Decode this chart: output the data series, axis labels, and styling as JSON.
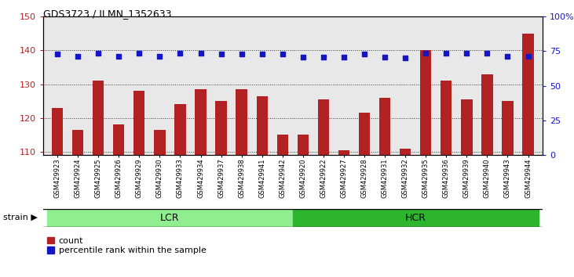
{
  "title": "GDS3723 / ILMN_1352633",
  "samples": [
    "GSM429923",
    "GSM429924",
    "GSM429925",
    "GSM429926",
    "GSM429929",
    "GSM429930",
    "GSM429933",
    "GSM429934",
    "GSM429937",
    "GSM429938",
    "GSM429941",
    "GSM429942",
    "GSM429920",
    "GSM429922",
    "GSM429927",
    "GSM429928",
    "GSM429931",
    "GSM429932",
    "GSM429935",
    "GSM429936",
    "GSM429939",
    "GSM429940",
    "GSM429943",
    "GSM429944"
  ],
  "counts": [
    123.0,
    116.5,
    131.0,
    118.0,
    128.0,
    116.5,
    124.0,
    128.5,
    125.0,
    128.5,
    126.5,
    115.0,
    115.0,
    125.5,
    110.5,
    121.5,
    126.0,
    111.0,
    140.0,
    131.0,
    125.5,
    133.0,
    125.0,
    145.0
  ],
  "percentile_ranks": [
    73.0,
    71.5,
    73.5,
    71.5,
    73.5,
    71.5,
    73.5,
    73.5,
    73.0,
    73.0,
    73.0,
    73.0,
    71.0,
    71.0,
    71.0,
    73.0,
    71.0,
    70.0,
    73.5,
    73.5,
    73.5,
    73.5,
    71.5,
    71.5
  ],
  "lcr_count": 12,
  "hcr_count": 12,
  "ylim_left": [
    109,
    150
  ],
  "ylim_right": [
    0,
    100
  ],
  "yticks_left": [
    110,
    120,
    130,
    140,
    150
  ],
  "yticks_right": [
    0,
    25,
    50,
    75,
    100
  ],
  "bar_color": "#b22222",
  "dot_color": "#1515c8",
  "lcr_color": "#90ee90",
  "hcr_color": "#2db52d",
  "bar_bottom": 109,
  "background_color": "#ffffff",
  "plot_face_color": "#e8e8e8"
}
